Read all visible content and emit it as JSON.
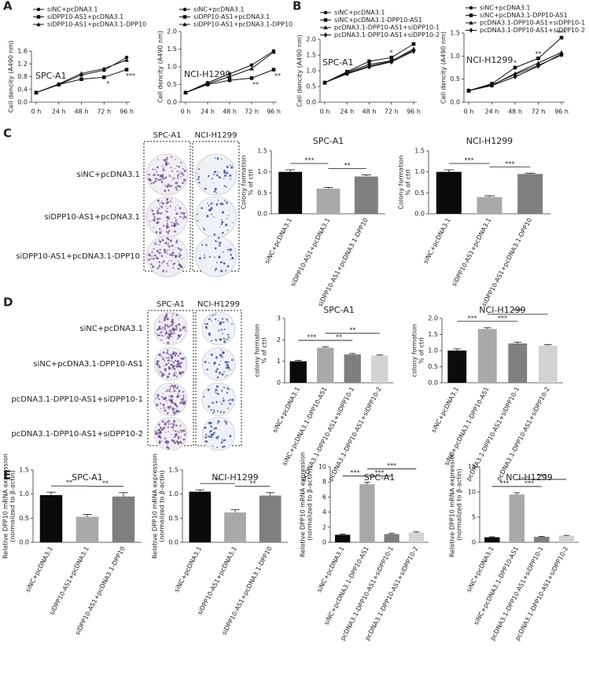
{
  "panel_labels": [
    "A",
    "B",
    "C",
    "D",
    "E"
  ],
  "images": [
    {
      "column_labels": [
        "SPC-A1",
        "NCI-H1299"
      ],
      "row_labels": [
        "siNC+pcDNA3.1",
        "siDPP10-AS1+pcDNA3.1",
        "siDPP10-AS1+pcDNA3.1-DPP10"
      ]
    },
    {
      "column_labels": [
        "SPC-A1",
        "NCI-H1299"
      ],
      "row_labels": [
        "siNC+pcDNA3.1",
        "siNC+pcDNA3.1-DPP10-AS1",
        "pcDNA3.1-DPP10-AS1+siDPP10-1",
        "pcDNA3.1-DPP10-AS1+siDPP10-2"
      ]
    }
  ],
  "chart_data": [
    {
      "type": "line",
      "title": "SPC-A1",
      "ylabel": [
        "Cell dencity (A490 nm)"
      ],
      "categories": [
        "0 h",
        "24 h",
        "48 h",
        "72 h",
        "96 h"
      ],
      "ylim": [
        0,
        1.6
      ],
      "yticks": [
        {
          "value": 0,
          "label": "0.0"
        },
        0.4,
        0.8,
        1.2,
        1.6
      ],
      "series": [
        {
          "name": "siNC+pcDNA3.1",
          "color": "#111111",
          "values": [
            0.3,
            0.55,
            0.85,
            1.0,
            1.4
          ]
        },
        {
          "name": "siDPP10-AS1+pcDNA3.1",
          "color": "#111111",
          "values": [
            0.3,
            0.55,
            0.72,
            0.78,
            1.02
          ]
        },
        {
          "name": "siDPP10-AS1+pcDNA3.1-DPP10",
          "color": "#111111",
          "values": [
            0.3,
            0.57,
            0.9,
            1.05,
            1.32
          ]
        }
      ],
      "annotations": [
        "*",
        "***"
      ]
    },
    {
      "type": "line",
      "title": "NCI-H1299",
      "ylabel": [
        "Cell dencity (A490 nm)"
      ],
      "categories": [
        "0 h",
        "24 h",
        "48 h",
        "72 h",
        "96 h"
      ],
      "ylim": [
        0,
        2
      ],
      "yticks": [
        {
          "value": 0,
          "label": "0.0"
        },
        0.5,
        {
          "value": 1,
          "label": "1.0"
        },
        1.5,
        {
          "value": 2,
          "label": "2.0"
        }
      ],
      "series": [
        {
          "name": "siNC+pcDNA3.1",
          "color": "#111111",
          "values": [
            0.27,
            0.55,
            0.8,
            1.05,
            1.45
          ]
        },
        {
          "name": "siDPP10-AS1+pcDNA3.1",
          "color": "#111111",
          "values": [
            0.27,
            0.5,
            0.62,
            0.68,
            0.92
          ]
        },
        {
          "name": "siDPP10-AS1+pcDNA3.1-DPP10",
          "color": "#111111",
          "values": [
            0.27,
            0.52,
            0.72,
            0.95,
            1.42
          ]
        }
      ],
      "annotations": [
        "**",
        "**"
      ]
    },
    {
      "type": "line",
      "title": "SPC-A1",
      "ylabel": [
        "Cell dencity (A490 nm)"
      ],
      "categories": [
        "0 h",
        "24 h",
        "48 h",
        "72 h",
        "96 h"
      ],
      "ylim": [
        0,
        2
      ],
      "yticks": [
        {
          "value": 0,
          "label": "0.0"
        },
        0.5,
        {
          "value": 1,
          "label": "1.0"
        },
        1.5,
        {
          "value": 2,
          "label": "2.0"
        }
      ],
      "series": [
        {
          "name": "siNC+pcDNA3.1",
          "color": "#111111",
          "values": [
            0.62,
            0.95,
            1.2,
            1.32,
            1.65
          ]
        },
        {
          "name": "siNC+pcDNA3.1-DPP10-AS1",
          "color": "#111111",
          "values": [
            0.62,
            0.97,
            1.3,
            1.42,
            1.85
          ]
        },
        {
          "name": "pcDNA3.1-DPP10-AS1+siDPP10-1",
          "color": "#111111",
          "values": [
            0.62,
            0.92,
            1.15,
            1.3,
            1.7
          ]
        },
        {
          "name": "pcDNA3.1-DPP10-AS1+siDPP10-2",
          "color": "#111111",
          "values": [
            0.62,
            0.9,
            1.12,
            1.28,
            1.62
          ]
        }
      ],
      "annotations": [
        "*"
      ]
    },
    {
      "type": "line",
      "title": "NCI-H1299",
      "ylabel": [
        "Cell dencity (A490 nm)"
      ],
      "categories": [
        "0 h",
        "24 h",
        "48 h",
        "72 h",
        "96 h"
      ],
      "ylim": [
        0,
        1.5
      ],
      "yticks": [
        {
          "value": 0,
          "label": "0.0"
        },
        0.5,
        {
          "value": 1,
          "label": "1.0"
        },
        1.5
      ],
      "series": [
        {
          "name": "siNC+pcDNA3.1",
          "color": "#111111",
          "values": [
            0.25,
            0.38,
            0.6,
            0.8,
            1.02
          ]
        },
        {
          "name": "siNC+pcDNA3.1-DPP10-AS1",
          "color": "#111111",
          "values": [
            0.25,
            0.4,
            0.75,
            0.95,
            1.4
          ]
        },
        {
          "name": "pcDNA3.1-DPP10-AS1+siDPP10-1",
          "color": "#111111",
          "values": [
            0.25,
            0.37,
            0.62,
            0.85,
            1.08
          ]
        },
        {
          "name": "pcDNA3.1-DPP10-AS1+siDPP10-2",
          "color": "#111111",
          "values": [
            0.25,
            0.36,
            0.55,
            0.78,
            1.05
          ]
        }
      ],
      "annotations": [
        "*",
        "**",
        "***"
      ]
    },
    {
      "type": "bar",
      "title": "SPC-A1",
      "ylabel": [
        "Colony formation",
        "% of ctrl"
      ],
      "categories": [
        "siNC+pcDNA3.1",
        "siDPP10-AS1+pcDNA3.1",
        "siDPP10-AS1+pcDNA3.1-DPP10"
      ],
      "values": [
        1.0,
        0.6,
        0.89
      ],
      "errors": [
        0.05,
        0.03,
        0.04
      ],
      "colors": [
        "#0a0a0a",
        "#a9a9a9",
        "#7f7f7f"
      ],
      "ylim": [
        0,
        1.5
      ],
      "yticks": [
        {
          "value": 0,
          "label": "0.0"
        },
        0.5,
        {
          "value": 1,
          "label": "1.0"
        },
        1.5
      ],
      "annotations": [
        "***",
        "**"
      ]
    },
    {
      "type": "bar",
      "title": "NCI-H1299",
      "ylabel": [
        "Colony formation",
        "% of ctrl"
      ],
      "categories": [
        "siNC+pcDNA3.1",
        "siDPP10-AS1+pcDNA3.1",
        "siDPP10-AS1+pcDNA3.1-DPP10"
      ],
      "values": [
        1.0,
        0.4,
        0.95
      ],
      "errors": [
        0.05,
        0.03,
        0.02
      ],
      "colors": [
        "#0a0a0a",
        "#a9a9a9",
        "#7f7f7f"
      ],
      "ylim": [
        0,
        1.5
      ],
      "yticks": [
        {
          "value": 0,
          "label": "0.0"
        },
        0.5,
        {
          "value": 1,
          "label": "1.0"
        },
        1.5
      ],
      "annotations": [
        "***",
        "***"
      ]
    },
    {
      "type": "bar",
      "title": "SPC-A1",
      "ylabel": [
        "colony formation",
        "% of ctrl"
      ],
      "categories": [
        "siNC+pcDNA3.1",
        "siNC+pcDNA3.1-DPP10-AS1",
        "pcDNA3.1-DPP10-AS1+siDPP10-1",
        "pcDNA3.1-DPP10-AS1+siDPP10-2"
      ],
      "values": [
        1.0,
        1.63,
        1.32,
        1.27
      ],
      "errors": [
        0.04,
        0.05,
        0.04,
        0.02
      ],
      "colors": [
        "#0a0a0a",
        "#a9a9a9",
        "#7f7f7f",
        "#d3d3d3"
      ],
      "ylim": [
        0,
        3
      ],
      "yticks": [
        0,
        1,
        2,
        3
      ],
      "annotations": [
        "***",
        "**",
        "**"
      ]
    },
    {
      "type": "bar",
      "title": "NCI-H1299",
      "ylabel": [
        "colony formation",
        "% of ctrl"
      ],
      "categories": [
        "siNC+pcDNA3.1",
        "siNC+pcDNA3.1-DPP10-AS1",
        "pcDNA3.1-DPP10-AS1+siDPP10-1",
        "pcDNA3.1-DPP10-AS1+siDPP10-2"
      ],
      "values": [
        1.0,
        1.67,
        1.22,
        1.15
      ],
      "errors": [
        0.05,
        0.04,
        0.04,
        0.03
      ],
      "colors": [
        "#0a0a0a",
        "#a9a9a9",
        "#7f7f7f",
        "#d3d3d3"
      ],
      "ylim": [
        0,
        2
      ],
      "yticks": [
        {
          "value": 0,
          "label": "0.0"
        },
        0.5,
        {
          "value": 1,
          "label": "1.0"
        },
        1.5,
        {
          "value": 2,
          "label": "2.0"
        }
      ],
      "annotations": [
        "***",
        "***",
        "***"
      ]
    },
    {
      "type": "bar",
      "title": "SPC-A1",
      "ylabel": [
        "Relative DPP10 mRNA expression",
        "(normalized to β-actin)"
      ],
      "categories": [
        "siNC+pcDNA3.1",
        "siDPP10-AS1+pcDNA3.1",
        "siDPP10-AS1+pcDNA3.1-DPP10"
      ],
      "values": [
        0.98,
        0.53,
        0.95
      ],
      "errors": [
        0.06,
        0.05,
        0.08
      ],
      "colors": [
        "#0a0a0a",
        "#a9a9a9",
        "#7f7f7f"
      ],
      "ylim": [
        0,
        1.5
      ],
      "yticks": [
        {
          "value": 0,
          "label": "0.0"
        },
        0.5,
        {
          "value": 1,
          "label": "1.0"
        },
        1.5
      ],
      "annotations": [
        "**",
        "**"
      ]
    },
    {
      "type": "bar",
      "title": "NCI-H1299",
      "ylabel": [
        "Relative DPP10 mRNA expression",
        "(normalized to β-actin)"
      ],
      "categories": [
        "siNC+pcDNA3.1",
        "siDPP10-AS1+pcDNA3.1",
        "siDPP10-AS1+pcDNA3.1-DPP10"
      ],
      "values": [
        1.05,
        0.62,
        0.97
      ],
      "errors": [
        0.04,
        0.06,
        0.06
      ],
      "colors": [
        "#0a0a0a",
        "#a9a9a9",
        "#7f7f7f"
      ],
      "ylim": [
        0,
        1.5
      ],
      "yticks": [
        {
          "value": 0,
          "label": "0.0"
        },
        0.5,
        {
          "value": 1,
          "label": "1.0"
        },
        1.5
      ],
      "annotations": [
        "**",
        "**"
      ]
    },
    {
      "type": "bar",
      "title": "SPC-A1",
      "ylabel": [
        "Relative DPP10 mRNA expression",
        "(normalized to β-actin)"
      ],
      "categories": [
        "siNC+pcDNA3.1",
        "siNC+pcDNA3.1-DPP10-AS1",
        "pcDNA3.1-DPP10-AS1+siDPP10-1",
        "pcDNA3.1-DPP10-AS1+siDPP10-2"
      ],
      "values": [
        1.0,
        7.7,
        1.1,
        1.3
      ],
      "errors": [
        0.08,
        0.25,
        0.08,
        0.08
      ],
      "colors": [
        "#0a0a0a",
        "#a9a9a9",
        "#7f7f7f",
        "#d3d3d3"
      ],
      "ylim": [
        0,
        10
      ],
      "yticks": [
        0,
        2,
        4,
        6,
        8,
        10
      ],
      "annotations": [
        "***",
        "***",
        "***"
      ]
    },
    {
      "type": "bar",
      "title": "NCI-H1299",
      "ylabel": [
        "Relative DPP10 mRNA expression",
        "(normalized to β-actin)"
      ],
      "categories": [
        "siNC+pcDNA3.1",
        "siNC+pcDNA3.1-DPP10-AS1",
        "pcDNA3.1-DPP10-AS1+siDPP10-1",
        "pcDNA3.1-DPP10-AS1+siDPP10-2"
      ],
      "values": [
        1.0,
        9.5,
        1.1,
        1.3
      ],
      "errors": [
        0.1,
        0.35,
        0.08,
        0.08
      ],
      "colors": [
        "#0a0a0a",
        "#a9a9a9",
        "#7f7f7f",
        "#d3d3d3"
      ],
      "ylim": [
        0,
        15
      ],
      "yticks": [
        0,
        5,
        10,
        15
      ],
      "annotations": [
        "***",
        "***",
        "***"
      ]
    }
  ]
}
